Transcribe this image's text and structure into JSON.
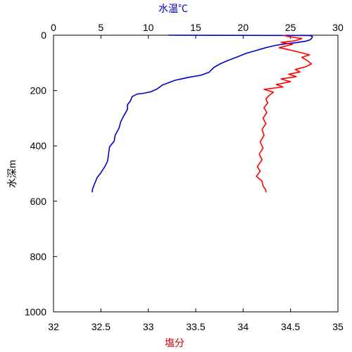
{
  "chart_data": {
    "type": "line",
    "top_axis": {
      "label": "水温℃",
      "label_color": "#0000CC",
      "range": [
        0,
        30
      ],
      "ticks": [
        "0",
        "5",
        "10",
        "15",
        "20",
        "25",
        "30"
      ]
    },
    "bottom_axis": {
      "label": "塩分",
      "label_color": "#CC0000",
      "range": [
        32,
        35
      ],
      "ticks": [
        "32",
        "32.5",
        "33",
        "33.5",
        "34",
        "34.5",
        "35"
      ]
    },
    "y_axis": {
      "label": "水深m",
      "range": [
        0,
        1000
      ],
      "inverted": true,
      "ticks": [
        "0",
        "200",
        "400",
        "600",
        "800",
        "1000"
      ]
    },
    "grid": false,
    "series": [
      {
        "axis": "top",
        "color": "#0000CC",
        "points": [
          [
            12.1,
            0
          ],
          [
            27.0,
            1
          ],
          [
            27.3,
            4
          ],
          [
            27.3,
            8
          ],
          [
            27.1,
            16
          ],
          [
            26.7,
            21
          ],
          [
            25.6,
            27
          ],
          [
            24.5,
            31
          ],
          [
            23.4,
            37
          ],
          [
            22.4,
            45
          ],
          [
            21.2,
            57
          ],
          [
            20.3,
            66
          ],
          [
            19.4,
            78
          ],
          [
            18.5,
            90
          ],
          [
            17.6,
            103
          ],
          [
            16.9,
            117
          ],
          [
            16.4,
            134
          ],
          [
            15.5,
            145
          ],
          [
            14.3,
            152
          ],
          [
            12.8,
            163
          ],
          [
            11.5,
            180
          ],
          [
            10.9,
            195
          ],
          [
            10.2,
            205
          ],
          [
            9.5,
            210
          ],
          [
            8.8,
            213
          ],
          [
            8.3,
            222
          ],
          [
            8.1,
            238
          ],
          [
            7.8,
            252
          ],
          [
            7.8,
            268
          ],
          [
            7.4,
            292
          ],
          [
            7.1,
            312
          ],
          [
            6.9,
            337
          ],
          [
            6.5,
            362
          ],
          [
            6.4,
            383
          ],
          [
            5.9,
            404
          ],
          [
            5.8,
            432
          ],
          [
            5.7,
            455
          ],
          [
            5.4,
            476
          ],
          [
            5.0,
            497
          ],
          [
            4.6,
            515
          ],
          [
            4.3,
            540
          ],
          [
            4.1,
            558
          ],
          [
            4.1,
            568
          ]
        ]
      },
      {
        "axis": "bottom",
        "color": "#FF0000",
        "points": [
          [
            34.42,
            0
          ],
          [
            34.48,
            5
          ],
          [
            34.62,
            12
          ],
          [
            34.55,
            20
          ],
          [
            34.4,
            26
          ],
          [
            34.52,
            33
          ],
          [
            34.38,
            45
          ],
          [
            34.5,
            54
          ],
          [
            34.6,
            62
          ],
          [
            34.7,
            71
          ],
          [
            34.62,
            80
          ],
          [
            34.68,
            92
          ],
          [
            34.72,
            104
          ],
          [
            34.66,
            114
          ],
          [
            34.55,
            124
          ],
          [
            34.6,
            133
          ],
          [
            34.48,
            141
          ],
          [
            34.56,
            150
          ],
          [
            34.4,
            158
          ],
          [
            34.5,
            168
          ],
          [
            34.35,
            178
          ],
          [
            34.42,
            187
          ],
          [
            34.22,
            196
          ],
          [
            34.32,
            206
          ],
          [
            34.28,
            216
          ],
          [
            34.24,
            230
          ],
          [
            34.26,
            245
          ],
          [
            34.22,
            262
          ],
          [
            34.25,
            280
          ],
          [
            34.21,
            300
          ],
          [
            34.24,
            320
          ],
          [
            34.2,
            340
          ],
          [
            34.22,
            362
          ],
          [
            34.18,
            385
          ],
          [
            34.21,
            408
          ],
          [
            34.17,
            430
          ],
          [
            34.2,
            450
          ],
          [
            34.15,
            475
          ],
          [
            34.18,
            492
          ],
          [
            34.14,
            510
          ],
          [
            34.2,
            528
          ],
          [
            34.21,
            545
          ],
          [
            34.24,
            560
          ],
          [
            34.24,
            568
          ]
        ]
      }
    ]
  }
}
